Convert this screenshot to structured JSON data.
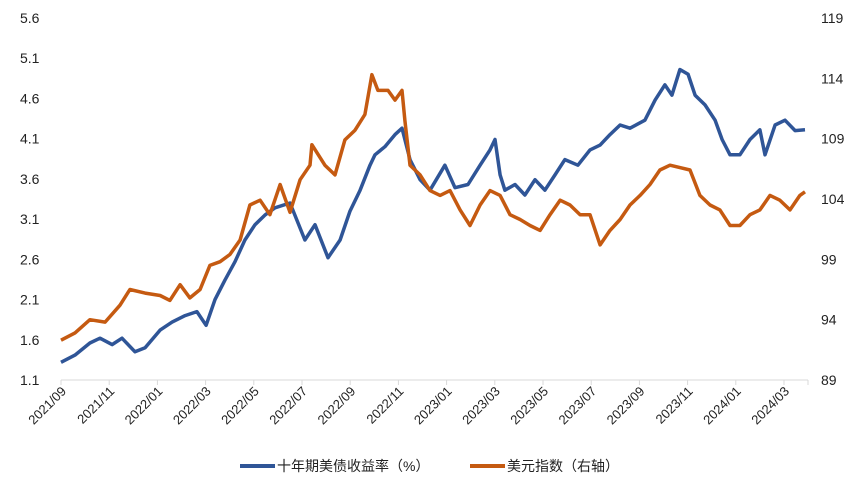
{
  "chart_data": {
    "type": "line",
    "title": "",
    "x_unit": "months since 2021/09",
    "x_tick_labels": [
      "2021/09",
      "2021/11",
      "2022/01",
      "2022/03",
      "2022/05",
      "2022/07",
      "2022/09",
      "2022/11",
      "2023/01",
      "2023/03",
      "2023/05",
      "2023/07",
      "2023/09",
      "2023/11",
      "2024/01",
      "2024/03"
    ],
    "y_left": {
      "ticks": [
        "1.1",
        "1.6",
        "2.1",
        "2.6",
        "3.1",
        "3.6",
        "4.1",
        "4.6",
        "5.1",
        "5.6"
      ],
      "range": [
        1.1,
        5.6
      ]
    },
    "y_right": {
      "ticks": [
        "89",
        "94",
        "99",
        "104",
        "109",
        "114",
        "119"
      ],
      "range": [
        89,
        119
      ]
    },
    "x_range": [
      0,
      31
    ],
    "grid": false,
    "legend_position": "bottom",
    "series": [
      {
        "name": "十年期美债收益率（%）",
        "axis": "left",
        "color": "#2F5597",
        "points": [
          [
            0,
            1.32
          ],
          [
            0.58,
            1.41
          ],
          [
            1.2,
            1.56
          ],
          [
            1.62,
            1.62
          ],
          [
            2.12,
            1.54
          ],
          [
            2.53,
            1.62
          ],
          [
            3.07,
            1.45
          ],
          [
            3.49,
            1.5
          ],
          [
            4.11,
            1.72
          ],
          [
            4.61,
            1.82
          ],
          [
            5.15,
            1.9
          ],
          [
            5.64,
            1.95
          ],
          [
            6.02,
            1.78
          ],
          [
            6.39,
            2.1
          ],
          [
            6.8,
            2.34
          ],
          [
            7.22,
            2.57
          ],
          [
            7.63,
            2.84
          ],
          [
            8.05,
            3.03
          ],
          [
            8.46,
            3.15
          ],
          [
            8.88,
            3.24
          ],
          [
            9.5,
            3.3
          ],
          [
            10.12,
            2.84
          ],
          [
            10.54,
            3.03
          ],
          [
            11.08,
            2.62
          ],
          [
            11.58,
            2.84
          ],
          [
            11.99,
            3.2
          ],
          [
            12.41,
            3.46
          ],
          [
            12.82,
            3.77
          ],
          [
            13.03,
            3.9
          ],
          [
            13.44,
            4.0
          ],
          [
            13.86,
            4.15
          ],
          [
            14.15,
            4.23
          ],
          [
            14.48,
            3.84
          ],
          [
            14.9,
            3.59
          ],
          [
            15.31,
            3.46
          ],
          [
            15.93,
            3.77
          ],
          [
            16.35,
            3.49
          ],
          [
            16.89,
            3.53
          ],
          [
            17.39,
            3.77
          ],
          [
            17.8,
            3.96
          ],
          [
            18.01,
            4.09
          ],
          [
            18.22,
            3.65
          ],
          [
            18.42,
            3.46
          ],
          [
            18.84,
            3.53
          ],
          [
            19.25,
            3.4
          ],
          [
            19.67,
            3.59
          ],
          [
            20.08,
            3.46
          ],
          [
            20.5,
            3.65
          ],
          [
            20.91,
            3.84
          ],
          [
            21.45,
            3.77
          ],
          [
            21.95,
            3.96
          ],
          [
            22.37,
            4.02
          ],
          [
            22.78,
            4.15
          ],
          [
            23.2,
            4.27
          ],
          [
            23.61,
            4.23
          ],
          [
            24.23,
            4.33
          ],
          [
            24.65,
            4.58
          ],
          [
            25.06,
            4.77
          ],
          [
            25.35,
            4.64
          ],
          [
            25.68,
            4.96
          ],
          [
            26.02,
            4.9
          ],
          [
            26.31,
            4.64
          ],
          [
            26.72,
            4.52
          ],
          [
            27.14,
            4.33
          ],
          [
            27.43,
            4.09
          ],
          [
            27.76,
            3.9
          ],
          [
            28.17,
            3.9
          ],
          [
            28.59,
            4.09
          ],
          [
            29.0,
            4.21
          ],
          [
            29.21,
            3.9
          ],
          [
            29.63,
            4.27
          ],
          [
            30.04,
            4.33
          ],
          [
            30.46,
            4.2
          ],
          [
            30.87,
            4.21
          ]
        ]
      },
      {
        "name": "美元指数（右轴）",
        "axis": "right",
        "color": "#C55A11",
        "points": [
          [
            0,
            92.3
          ],
          [
            0.58,
            92.9
          ],
          [
            1.2,
            94.0
          ],
          [
            1.83,
            93.8
          ],
          [
            2.45,
            95.2
          ],
          [
            2.86,
            96.5
          ],
          [
            3.49,
            96.2
          ],
          [
            4.11,
            96.0
          ],
          [
            4.52,
            95.6
          ],
          [
            4.94,
            96.9
          ],
          [
            5.35,
            95.8
          ],
          [
            5.77,
            96.5
          ],
          [
            6.18,
            98.5
          ],
          [
            6.6,
            98.8
          ],
          [
            7.01,
            99.4
          ],
          [
            7.43,
            100.6
          ],
          [
            7.84,
            103.5
          ],
          [
            8.26,
            103.9
          ],
          [
            8.67,
            102.7
          ],
          [
            9.09,
            105.2
          ],
          [
            9.5,
            102.9
          ],
          [
            9.92,
            105.6
          ],
          [
            10.33,
            106.8
          ],
          [
            10.41,
            108.5
          ],
          [
            10.95,
            106.8
          ],
          [
            11.37,
            106.0
          ],
          [
            11.78,
            108.9
          ],
          [
            12.2,
            109.7
          ],
          [
            12.61,
            111.0
          ],
          [
            12.9,
            114.3
          ],
          [
            13.15,
            113.0
          ],
          [
            13.57,
            113.0
          ],
          [
            13.86,
            112.2
          ],
          [
            14.15,
            113.0
          ],
          [
            14.27,
            110.5
          ],
          [
            14.48,
            106.8
          ],
          [
            14.9,
            106.0
          ],
          [
            15.31,
            104.7
          ],
          [
            15.73,
            104.3
          ],
          [
            16.14,
            104.7
          ],
          [
            16.56,
            103.1
          ],
          [
            16.97,
            101.8
          ],
          [
            17.39,
            103.5
          ],
          [
            17.8,
            104.7
          ],
          [
            18.22,
            104.3
          ],
          [
            18.63,
            102.7
          ],
          [
            19.05,
            102.3
          ],
          [
            19.46,
            101.8
          ],
          [
            19.88,
            101.4
          ],
          [
            20.29,
            102.7
          ],
          [
            20.71,
            103.9
          ],
          [
            21.12,
            103.5
          ],
          [
            21.54,
            102.7
          ],
          [
            21.95,
            102.7
          ],
          [
            22.37,
            100.2
          ],
          [
            22.78,
            101.4
          ],
          [
            23.2,
            102.3
          ],
          [
            23.61,
            103.5
          ],
          [
            24.03,
            104.3
          ],
          [
            24.44,
            105.2
          ],
          [
            24.85,
            106.4
          ],
          [
            25.27,
            106.8
          ],
          [
            25.68,
            106.6
          ],
          [
            26.1,
            106.4
          ],
          [
            26.51,
            104.3
          ],
          [
            26.93,
            103.5
          ],
          [
            27.34,
            103.1
          ],
          [
            27.76,
            101.8
          ],
          [
            28.17,
            101.8
          ],
          [
            28.59,
            102.7
          ],
          [
            29.0,
            103.1
          ],
          [
            29.42,
            104.3
          ],
          [
            29.83,
            103.9
          ],
          [
            30.25,
            103.1
          ],
          [
            30.66,
            104.3
          ],
          [
            30.87,
            104.6
          ]
        ]
      }
    ]
  }
}
